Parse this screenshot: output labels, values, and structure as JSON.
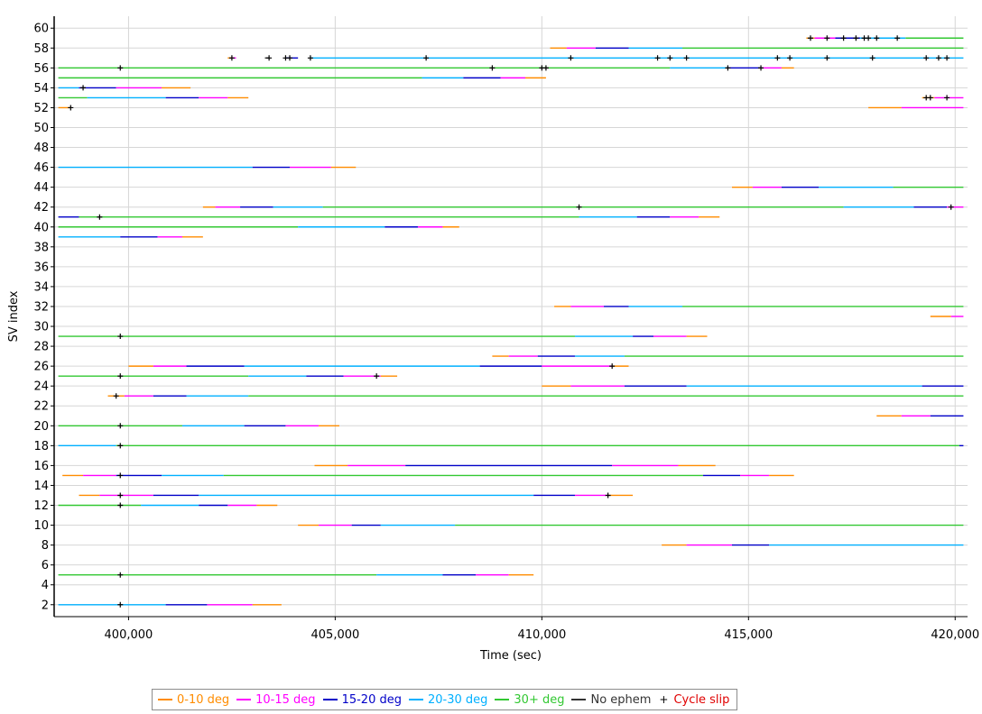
{
  "chart_data": {
    "type": "line",
    "xlabel": "Time (sec)",
    "ylabel": "SV index",
    "xlim": [
      398200,
      420300
    ],
    "ylim": [
      0.8,
      61.2
    ],
    "xticks": [
      400000,
      405000,
      410000,
      415000,
      420000
    ],
    "xtick_labels": [
      "400,000",
      "405,000",
      "410,000",
      "415,000",
      "420,000"
    ],
    "yticks": [
      2,
      4,
      6,
      8,
      10,
      12,
      14,
      16,
      18,
      20,
      22,
      24,
      26,
      28,
      30,
      32,
      34,
      36,
      38,
      40,
      42,
      44,
      46,
      48,
      50,
      52,
      54,
      56,
      58,
      60
    ],
    "ytick_labels": [
      "2",
      "4",
      "6",
      "8",
      "10",
      "12",
      "14",
      "16",
      "18",
      "20",
      "22",
      "24",
      "26",
      "28",
      "30",
      "32",
      "34",
      "36",
      "38",
      "40",
      "42",
      "44",
      "46",
      "48",
      "50",
      "52",
      "54",
      "56",
      "58",
      "60"
    ],
    "grid": true,
    "legend_position": "bottom",
    "categories": [
      {
        "key": "c0",
        "name": "0-10 deg",
        "color": "#ff8c00"
      },
      {
        "key": "c1",
        "name": "10-15 deg",
        "color": "#ff00ff"
      },
      {
        "key": "c2",
        "name": "15-20 deg",
        "color": "#0000c8"
      },
      {
        "key": "c3",
        "name": "20-30 deg",
        "color": "#00b0ff"
      },
      {
        "key": "c4",
        "name": "30+ deg",
        "color": "#32c832"
      },
      {
        "key": "ne",
        "name": "No ephem",
        "color": "#333333"
      }
    ],
    "cycle_slip": {
      "name": "Cycle slip",
      "marker": "+",
      "color": "#e00000",
      "mark_color": "#000000"
    },
    "tracks": [
      {
        "sv": 2,
        "segments": [
          [
            398300,
            400900,
            "c3"
          ],
          [
            400900,
            401900,
            "c2"
          ],
          [
            401900,
            403000,
            "c1"
          ],
          [
            403000,
            403700,
            "c0"
          ]
        ],
        "slips": [
          399800
        ]
      },
      {
        "sv": 5,
        "segments": [
          [
            398300,
            406000,
            "c4"
          ],
          [
            406000,
            407600,
            "c3"
          ],
          [
            407600,
            408400,
            "c2"
          ],
          [
            408400,
            409200,
            "c1"
          ],
          [
            409200,
            409800,
            "c0"
          ]
        ],
        "slips": [
          399800
        ]
      },
      {
        "sv": 8,
        "segments": [
          [
            412900,
            413500,
            "c0"
          ],
          [
            413500,
            414600,
            "c1"
          ],
          [
            414600,
            415500,
            "c2"
          ],
          [
            415500,
            420200,
            "c3"
          ]
        ],
        "slips": []
      },
      {
        "sv": 10,
        "segments": [
          [
            404100,
            404600,
            "c0"
          ],
          [
            404600,
            405400,
            "c1"
          ],
          [
            405400,
            406100,
            "c2"
          ],
          [
            406100,
            407900,
            "c3"
          ],
          [
            407900,
            420200,
            "c4"
          ]
        ],
        "slips": []
      },
      {
        "sv": 12,
        "segments": [
          [
            398300,
            400300,
            "c4"
          ],
          [
            400300,
            401700,
            "c3"
          ],
          [
            401700,
            402400,
            "c2"
          ],
          [
            402400,
            403100,
            "c1"
          ],
          [
            403100,
            403600,
            "c0"
          ]
        ],
        "slips": [
          399800
        ]
      },
      {
        "sv": 13,
        "segments": [
          [
            398800,
            399300,
            "c0"
          ],
          [
            399300,
            400600,
            "c1"
          ],
          [
            400600,
            401700,
            "c2"
          ],
          [
            401700,
            409800,
            "c3"
          ],
          [
            409800,
            410800,
            "c2"
          ],
          [
            410800,
            411600,
            "c1"
          ],
          [
            411600,
            412200,
            "c0"
          ]
        ],
        "slips": [
          399800,
          411600
        ]
      },
      {
        "sv": 15,
        "segments": [
          [
            398400,
            398900,
            "c0"
          ],
          [
            398900,
            399700,
            "c1"
          ],
          [
            399700,
            400800,
            "c2"
          ],
          [
            400800,
            402300,
            "c3"
          ],
          [
            402300,
            413900,
            "c4"
          ],
          [
            413900,
            414800,
            "c2"
          ],
          [
            414800,
            415500,
            "c1"
          ],
          [
            415500,
            416100,
            "c0"
          ]
        ],
        "slips": [
          399800
        ]
      },
      {
        "sv": 16,
        "segments": [
          [
            404500,
            405300,
            "c0"
          ],
          [
            405300,
            406700,
            "c1"
          ],
          [
            406700,
            411700,
            "c2"
          ],
          [
            411700,
            413300,
            "c1"
          ],
          [
            413300,
            414200,
            "c0"
          ]
        ],
        "slips": []
      },
      {
        "sv": 18,
        "segments": [
          [
            398300,
            399700,
            "c3"
          ],
          [
            399700,
            420100,
            "c4"
          ],
          [
            420100,
            420200,
            "c2"
          ]
        ],
        "slips": [
          399800
        ]
      },
      {
        "sv": 20,
        "segments": [
          [
            398300,
            401300,
            "c4"
          ],
          [
            401300,
            402800,
            "c3"
          ],
          [
            402800,
            403800,
            "c2"
          ],
          [
            403800,
            404600,
            "c1"
          ],
          [
            404600,
            405100,
            "c0"
          ]
        ],
        "slips": [
          399800
        ]
      },
      {
        "sv": 21,
        "segments": [
          [
            418100,
            418700,
            "c0"
          ],
          [
            418700,
            419400,
            "c1"
          ],
          [
            419400,
            420200,
            "c2"
          ]
        ],
        "slips": []
      },
      {
        "sv": 23,
        "segments": [
          [
            399500,
            399900,
            "c0"
          ],
          [
            399900,
            400600,
            "c1"
          ],
          [
            400600,
            401400,
            "c2"
          ],
          [
            401400,
            402900,
            "c3"
          ],
          [
            402900,
            420200,
            "c4"
          ]
        ],
        "slips": [
          399700
        ]
      },
      {
        "sv": 24,
        "segments": [
          [
            410000,
            410700,
            "c0"
          ],
          [
            410700,
            412000,
            "c1"
          ],
          [
            412000,
            413500,
            "c2"
          ],
          [
            413500,
            419200,
            "c3"
          ],
          [
            419200,
            420200,
            "c2"
          ]
        ],
        "slips": []
      },
      {
        "sv": 25,
        "segments": [
          [
            398300,
            402900,
            "c4"
          ],
          [
            402900,
            404300,
            "c3"
          ],
          [
            404300,
            405200,
            "c2"
          ],
          [
            405200,
            406100,
            "c1"
          ],
          [
            406100,
            406500,
            "c0"
          ]
        ],
        "slips": [
          399800,
          406000
        ]
      },
      {
        "sv": 26,
        "segments": [
          [
            400000,
            400600,
            "c0"
          ],
          [
            400600,
            401400,
            "c1"
          ],
          [
            401400,
            402800,
            "c2"
          ],
          [
            402800,
            408500,
            "c3"
          ],
          [
            408500,
            410000,
            "c2"
          ],
          [
            410000,
            411700,
            "c1"
          ],
          [
            411700,
            412100,
            "c0"
          ]
        ],
        "slips": [
          411700
        ]
      },
      {
        "sv": 27,
        "segments": [
          [
            408800,
            409200,
            "c0"
          ],
          [
            409200,
            409900,
            "c1"
          ],
          [
            409900,
            410800,
            "c2"
          ],
          [
            410800,
            412000,
            "c3"
          ],
          [
            412000,
            420200,
            "c4"
          ]
        ],
        "slips": []
      },
      {
        "sv": 29,
        "segments": [
          [
            398300,
            410800,
            "c4"
          ],
          [
            410800,
            412200,
            "c3"
          ],
          [
            412200,
            412700,
            "c2"
          ],
          [
            412700,
            413500,
            "c1"
          ],
          [
            413500,
            414000,
            "c0"
          ]
        ],
        "slips": [
          399800
        ]
      },
      {
        "sv": 31,
        "segments": [
          [
            419400,
            419900,
            "c0"
          ],
          [
            419900,
            420200,
            "c1"
          ]
        ],
        "slips": []
      },
      {
        "sv": 32,
        "segments": [
          [
            410300,
            410700,
            "c0"
          ],
          [
            410700,
            411500,
            "c1"
          ],
          [
            411500,
            412100,
            "c2"
          ],
          [
            412100,
            413400,
            "c3"
          ],
          [
            413400,
            420200,
            "c4"
          ]
        ],
        "slips": []
      },
      {
        "sv": 39,
        "segments": [
          [
            398300,
            399800,
            "c3"
          ],
          [
            399800,
            400700,
            "c2"
          ],
          [
            400700,
            401300,
            "c1"
          ],
          [
            401300,
            401800,
            "c0"
          ]
        ],
        "slips": []
      },
      {
        "sv": 40,
        "segments": [
          [
            398300,
            404100,
            "c4"
          ],
          [
            404100,
            406200,
            "c3"
          ],
          [
            406200,
            407000,
            "c2"
          ],
          [
            407000,
            407600,
            "c1"
          ],
          [
            407600,
            408000,
            "c0"
          ]
        ],
        "slips": []
      },
      {
        "sv": 41,
        "segments": [
          [
            398300,
            398800,
            "c2"
          ],
          [
            398800,
            410900,
            "c4"
          ],
          [
            410900,
            412300,
            "c3"
          ],
          [
            412300,
            413100,
            "c2"
          ],
          [
            413100,
            413800,
            "c1"
          ],
          [
            413800,
            414300,
            "c0"
          ]
        ],
        "slips": [
          399300
        ]
      },
      {
        "sv": 42,
        "segments": [
          [
            401800,
            402100,
            "c0"
          ],
          [
            402100,
            402700,
            "c1"
          ],
          [
            402700,
            403500,
            "c2"
          ],
          [
            403500,
            404700,
            "c3"
          ],
          [
            404700,
            417300,
            "c4"
          ],
          [
            417300,
            419000,
            "c3"
          ],
          [
            419000,
            419800,
            "c2"
          ],
          [
            419800,
            420200,
            "c1"
          ]
        ],
        "slips": [
          410900,
          419900
        ]
      },
      {
        "sv": 44,
        "segments": [
          [
            414600,
            415100,
            "c0"
          ],
          [
            415100,
            415800,
            "c1"
          ],
          [
            415800,
            416700,
            "c2"
          ],
          [
            416700,
            418500,
            "c3"
          ],
          [
            418500,
            420200,
            "c4"
          ]
        ],
        "slips": []
      },
      {
        "sv": 46,
        "segments": [
          [
            398300,
            403000,
            "c3"
          ],
          [
            403000,
            403900,
            "c2"
          ],
          [
            403900,
            404900,
            "c1"
          ],
          [
            404900,
            405500,
            "c0"
          ]
        ],
        "slips": []
      },
      {
        "sv": 52,
        "segments": [
          [
            398300,
            398600,
            "c0"
          ],
          [
            417900,
            418700,
            "c0"
          ],
          [
            418700,
            420200,
            "c1"
          ]
        ],
        "slips": [
          398600
        ]
      },
      {
        "sv": 53,
        "segments": [
          [
            398300,
            399000,
            "c4"
          ],
          [
            399000,
            400900,
            "c3"
          ],
          [
            400900,
            401700,
            "c2"
          ],
          [
            401700,
            402400,
            "c1"
          ],
          [
            402400,
            402900,
            "c0"
          ],
          [
            419200,
            419500,
            "c0"
          ],
          [
            419500,
            420200,
            "c1"
          ]
        ],
        "slips": [
          419300,
          419400,
          419800
        ]
      },
      {
        "sv": 54,
        "segments": [
          [
            398300,
            398800,
            "c3"
          ],
          [
            398800,
            399700,
            "c2"
          ],
          [
            399700,
            400800,
            "c1"
          ],
          [
            400800,
            401500,
            "c0"
          ]
        ],
        "slips": [
          398900
        ]
      },
      {
        "sv": 55,
        "segments": [
          [
            398300,
            407100,
            "c4"
          ],
          [
            407100,
            408100,
            "c3"
          ],
          [
            408100,
            409000,
            "c2"
          ],
          [
            409000,
            409600,
            "c1"
          ],
          [
            409600,
            410100,
            "c0"
          ]
        ],
        "slips": []
      },
      {
        "sv": 56,
        "segments": [
          [
            398300,
            413100,
            "c4"
          ],
          [
            413100,
            414500,
            "c3"
          ],
          [
            414500,
            415300,
            "c2"
          ],
          [
            415300,
            415800,
            "c1"
          ],
          [
            415800,
            416100,
            "c0"
          ]
        ],
        "slips": [
          399800,
          408800,
          410000,
          410100,
          414500,
          415300
        ]
      },
      {
        "sv": 57,
        "segments": [
          [
            402400,
            402500,
            "c0"
          ],
          [
            402500,
            402600,
            "c1"
          ],
          [
            403300,
            403400,
            "ne"
          ],
          [
            403800,
            404100,
            "c2"
          ],
          [
            404400,
            420200,
            "c3"
          ]
        ],
        "slips": [
          402500,
          403400,
          403800,
          403900,
          404400,
          407200,
          410700,
          412800,
          413100,
          413500,
          415700,
          416000,
          416900,
          418000,
          419300,
          419600,
          419800
        ]
      },
      {
        "sv": 58,
        "segments": [
          [
            410200,
            410600,
            "c0"
          ],
          [
            410600,
            411300,
            "c1"
          ],
          [
            411300,
            412100,
            "c2"
          ],
          [
            412100,
            413400,
            "c3"
          ],
          [
            413400,
            420200,
            "c4"
          ]
        ],
        "slips": []
      },
      {
        "sv": 59,
        "segments": [
          [
            416400,
            416600,
            "c0"
          ],
          [
            416600,
            417100,
            "c1"
          ],
          [
            417100,
            417700,
            "c2"
          ],
          [
            417700,
            418800,
            "c3"
          ],
          [
            418800,
            420200,
            "c4"
          ]
        ],
        "slips": [
          416500,
          416900,
          417300,
          417600,
          417800,
          417900,
          418100,
          418600
        ]
      }
    ]
  }
}
